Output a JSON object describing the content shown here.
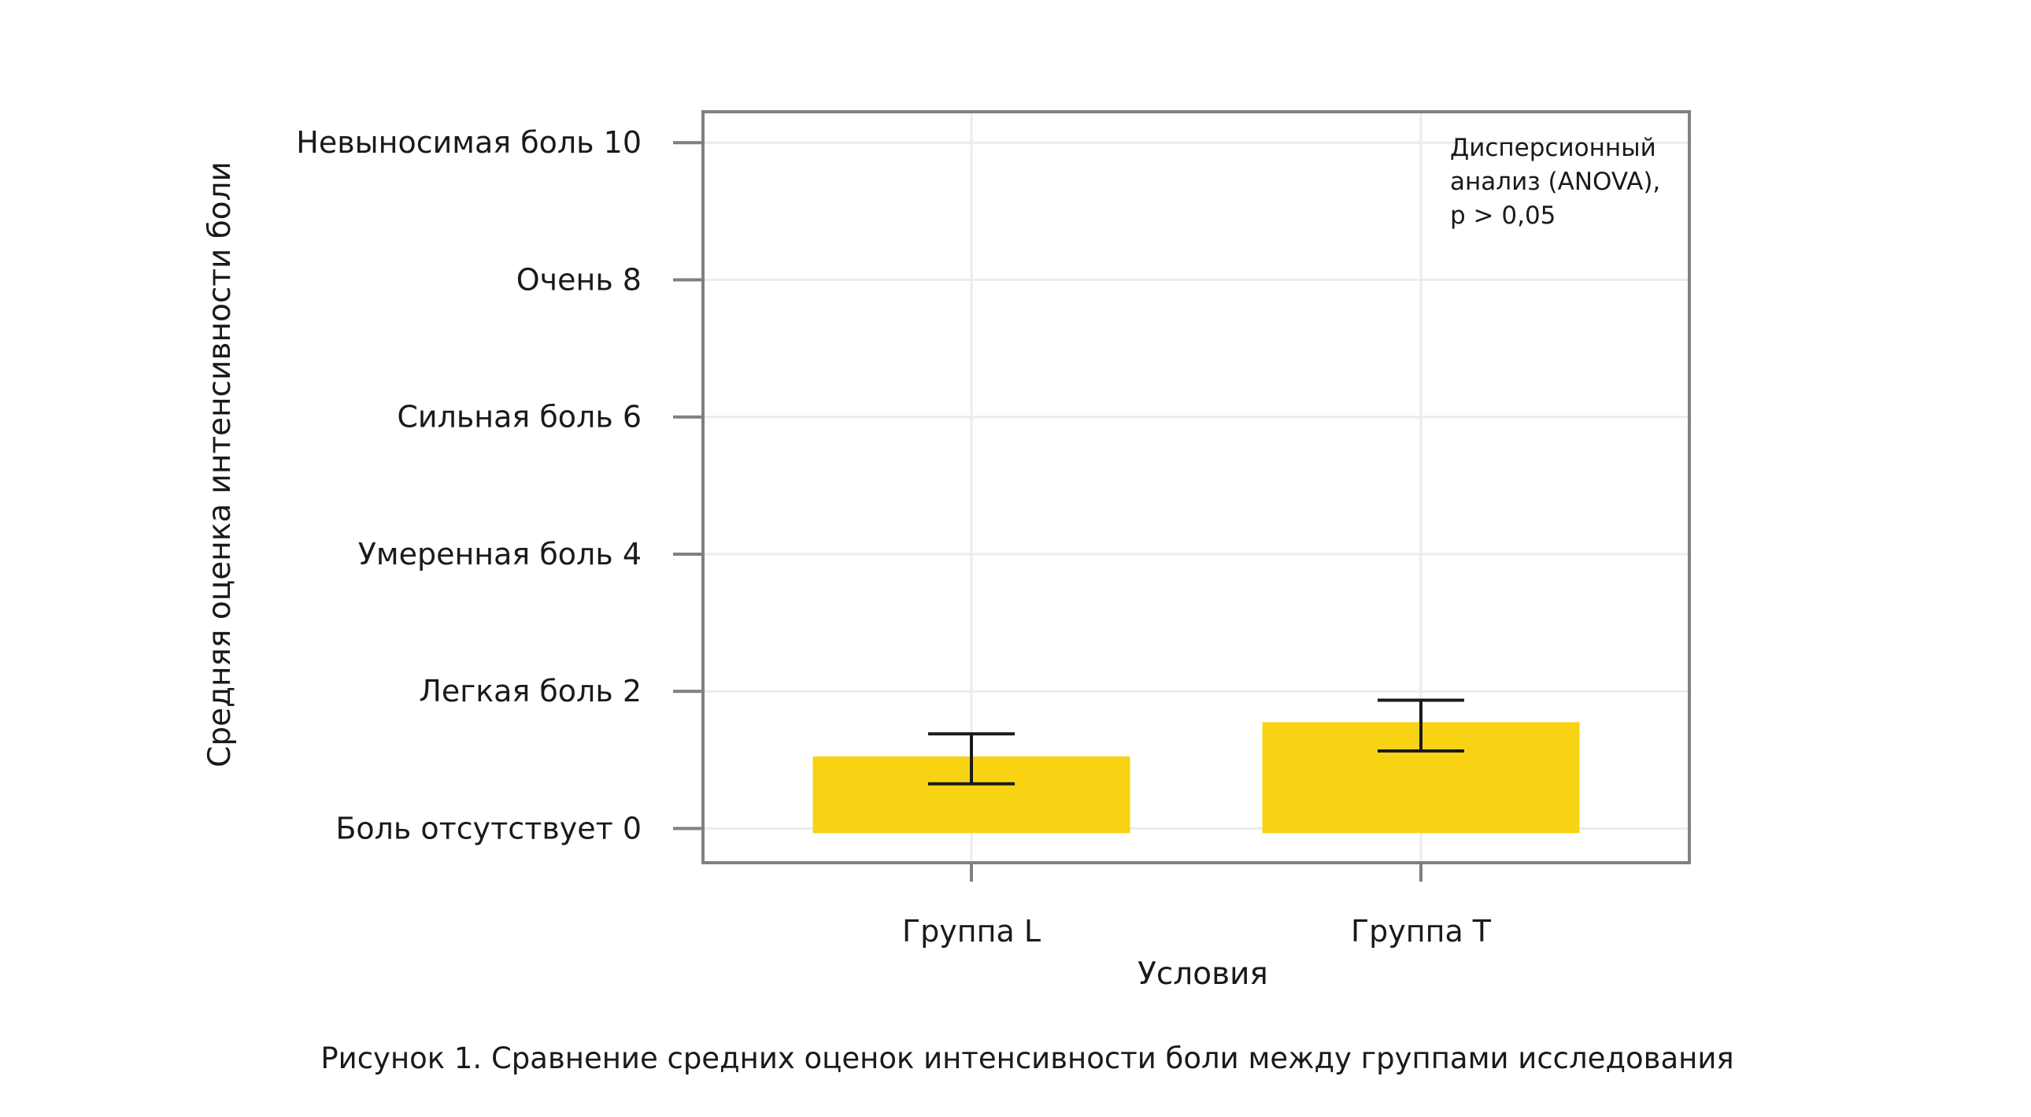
{
  "chart_data": {
    "type": "bar",
    "categories": [
      "Группа L",
      "Группа T"
    ],
    "values": [
      1.05,
      1.55
    ],
    "error_low": [
      0.65,
      1.13
    ],
    "error_high": [
      1.38,
      1.87
    ],
    "ylim": [
      -0.5,
      10.45
    ],
    "yticks": [
      {
        "value": 0,
        "label": "Боль отсутствует 0"
      },
      {
        "value": 2,
        "label": "Легкая боль 2"
      },
      {
        "value": 4,
        "label": "Умеренная боль 4"
      },
      {
        "value": 6,
        "label": "Сильная боль 6"
      },
      {
        "value": 8,
        "label": "Очень 8"
      },
      {
        "value": 10,
        "label": "Невыносимая боль 10"
      }
    ],
    "xlabel": "Условия",
    "ylabel": "Средняя оценка интенсивности боли",
    "annotation": [
      "Дисперсионный",
      "анализ (ANOVA),",
      "p > 0,05"
    ],
    "caption": "Рисунок 1. Сравнение средних оценок интенсивности боли между группами исследования",
    "grid": true,
    "bar_color": "#F7D313",
    "grid_color": "#ECECEC",
    "frame_color": "#808080"
  }
}
